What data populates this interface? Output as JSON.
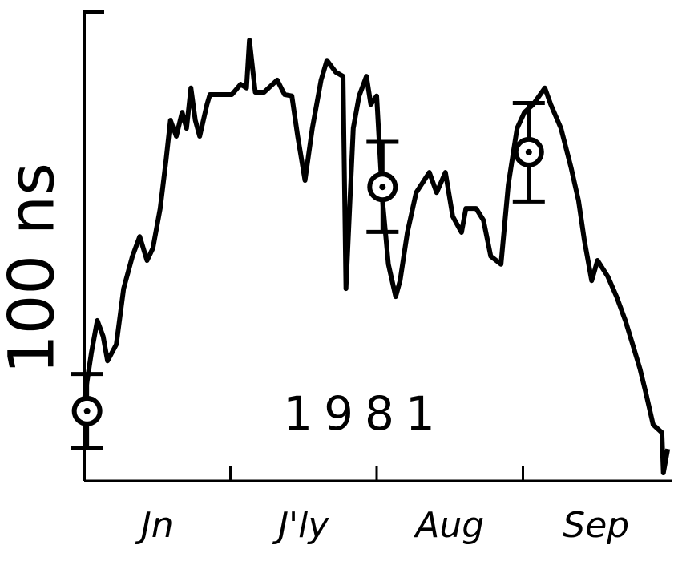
{
  "chart_data": {
    "type": "line",
    "y_label": "100 ns",
    "annotation": "1981",
    "categories": [
      "Jn",
      "J'ly",
      "Aug",
      "Sep"
    ],
    "xlim": [
      0,
      4
    ],
    "ylim": [
      0,
      100
    ],
    "series": [
      {
        "color": "#000000",
        "x": [
          0,
          0.05,
          0.09,
          0.13,
          0.16,
          0.22,
          0.27,
          0.33,
          0.38,
          0.43,
          0.47,
          0.52,
          0.56,
          0.59,
          0.63,
          0.67,
          0.7,
          0.73,
          0.76,
          0.79,
          0.84,
          0.86,
          1.01,
          1.07,
          1.11,
          1.13,
          1.17,
          1.23,
          1.32,
          1.37,
          1.42,
          1.46,
          1.51,
          1.56,
          1.62,
          1.66,
          1.72,
          1.77,
          1.79,
          1.84,
          1.88,
          1.93,
          1.96,
          2.0,
          2.04,
          2.08,
          2.13,
          2.16,
          2.21,
          2.27,
          2.36,
          2.41,
          2.47,
          2.52,
          2.58,
          2.61,
          2.68,
          2.73,
          2.78,
          2.85,
          2.9,
          2.96,
          3.01,
          3.07,
          3.15,
          3.19,
          3.26,
          3.33,
          3.38,
          3.42,
          3.47,
          3.51,
          3.58,
          3.64,
          3.7,
          3.75,
          3.8,
          3.84,
          3.89,
          3.95,
          3.96,
          3.99
        ],
        "values": [
          17.1,
          27.4,
          34.2,
          30.8,
          25.6,
          29.1,
          41.0,
          47.9,
          52.1,
          47.0,
          49.6,
          58.1,
          68.4,
          76.9,
          73.5,
          78.6,
          75.2,
          83.8,
          76.9,
          73.5,
          80.3,
          82.4,
          82.4,
          84.6,
          83.8,
          94.0,
          82.9,
          82.9,
          85.5,
          82.4,
          82.1,
          73.5,
          64.1,
          75.2,
          85.5,
          89.7,
          87.2,
          86.3,
          41.0,
          75.2,
          82.1,
          86.3,
          80.3,
          82.1,
          59.8,
          46.2,
          39.3,
          42.7,
          53.0,
          61.5,
          65.8,
          61.5,
          65.8,
          56.4,
          53.0,
          58.1,
          58.1,
          55.6,
          47.9,
          46.2,
          63.2,
          75.2,
          78.6,
          80.3,
          83.8,
          80.3,
          75.2,
          66.7,
          59.8,
          51.3,
          42.7,
          47.0,
          43.6,
          39.3,
          34.2,
          29.1,
          23.9,
          18.8,
          12.0,
          10.3,
          1.7,
          6.8
        ]
      },
      {
        "type": "errorbar",
        "color": "#000000",
        "x": [
          0.02,
          2.04,
          3.04
        ],
        "values": [
          14.9,
          62.7,
          70.1
        ],
        "errors": [
          7.9,
          9.6,
          10.5
        ]
      }
    ]
  }
}
